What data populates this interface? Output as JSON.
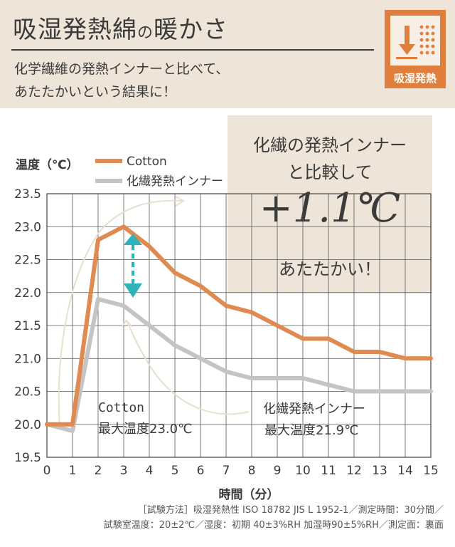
{
  "header": {
    "title_main": "吸湿発熱綿",
    "title_particle": "の",
    "title_tail": "暖かさ",
    "subtitle_line1": "化学繊維の発熱インナーと比べて、",
    "subtitle_line2": "あたたかいという結果に！",
    "badge_label": "吸湿発熱"
  },
  "callout": {
    "line1": "化繊の発熱インナー",
    "line2": "と比較して",
    "big_value": "+1.1℃",
    "line3": "あたたかい！"
  },
  "annotations": {
    "cotton_name": "Cotton",
    "cotton_max": "最大温度23.0℃",
    "synthetic_name": "化繊発熱インナー",
    "synthetic_max": "最大温度21.9℃"
  },
  "footnote": {
    "line1": "［試験方法］吸湿発熱性 ISO 18782 JIS L 1952-1／測定時間：30分間／",
    "line2": "試験室温度：20±2℃／湿度：初期 40±3%RH 加湿時90±5%RH／測定面：裏面"
  },
  "colors": {
    "cotton": "#e08a4f",
    "synthetic": "#c4c4c4",
    "arrow": "#2fb3b8",
    "header_bg": "#efe4d8",
    "badge": "#e07e3c"
  },
  "chart_data": {
    "type": "line",
    "title": "",
    "xlabel": "時間（分）",
    "ylabel": "温度（℃）",
    "x": [
      0,
      1,
      2,
      3,
      4,
      5,
      6,
      7,
      8,
      9,
      10,
      11,
      12,
      13,
      14,
      15
    ],
    "xlim": [
      0,
      15
    ],
    "ylim": [
      19.5,
      23.5
    ],
    "yticks": [
      "19.5",
      "20.0",
      "20.5",
      "21.0",
      "21.5",
      "22.0",
      "22.5",
      "23.0",
      "23.5"
    ],
    "grid": true,
    "legend_position": "top-left",
    "series": [
      {
        "name": "Cotton",
        "color": "#e08a4f",
        "values": [
          20.0,
          20.0,
          22.8,
          23.0,
          22.7,
          22.3,
          22.1,
          21.8,
          21.7,
          21.5,
          21.3,
          21.3,
          21.1,
          21.1,
          21.0,
          21.0
        ]
      },
      {
        "name": "化繊発熱インナー",
        "color": "#c4c4c4",
        "values": [
          20.0,
          19.9,
          21.9,
          21.8,
          21.5,
          21.2,
          21.0,
          20.8,
          20.7,
          20.7,
          20.7,
          20.6,
          20.5,
          20.5,
          20.5,
          20.5
        ]
      }
    ]
  }
}
